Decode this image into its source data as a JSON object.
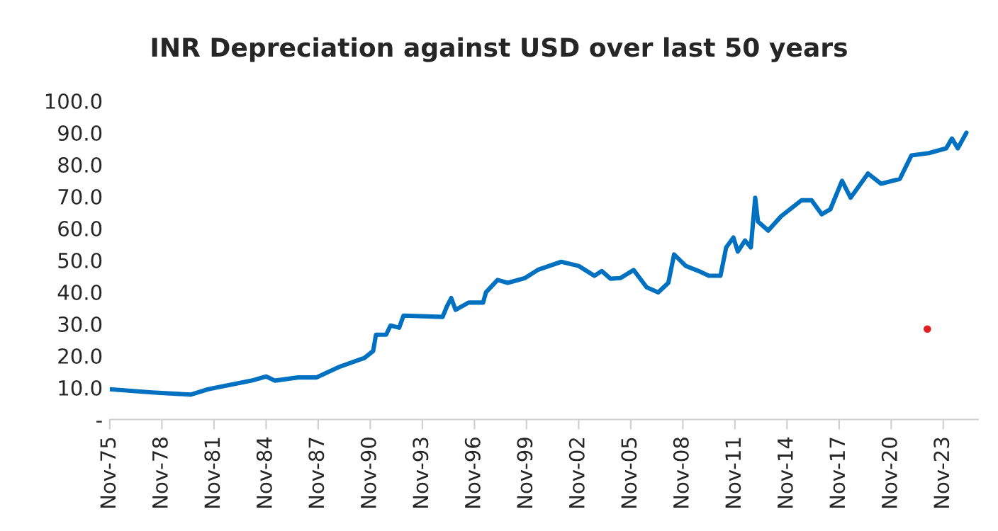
{
  "chart_data": {
    "type": "line",
    "title": "INR Depreciation against USD over last 50 years",
    "x": [
      "1975-11",
      "1978-04",
      "1980-07",
      "1981-07",
      "1984-01",
      "1984-11",
      "1985-05",
      "1986-09",
      "1987-10",
      "1989-02",
      "1990-07",
      "1991-01",
      "1991-03",
      "1991-10",
      "1992-01",
      "1992-07",
      "1992-10",
      "1995-01",
      "1995-04",
      "1995-07",
      "1995-10",
      "1996-07",
      "1997-05",
      "1997-07",
      "1998-03",
      "1998-10",
      "1999-10",
      "2000-07",
      "2001-11",
      "2002-11",
      "2003-10",
      "2004-03",
      "2004-09",
      "2005-04",
      "2006-01",
      "2006-10",
      "2007-06",
      "2008-01",
      "2008-05",
      "2009-01",
      "2009-10",
      "2010-05",
      "2011-01",
      "2011-05",
      "2011-10",
      "2012-01",
      "2012-06",
      "2012-10",
      "2013-01",
      "2013-03",
      "2013-10",
      "2014-07",
      "2015-09",
      "2016-04",
      "2016-11",
      "2017-05",
      "2018-01",
      "2018-07",
      "2019-07",
      "2020-04",
      "2021-05",
      "2022-01",
      "2023-01",
      "2024-01",
      "2024-05",
      "2024-09",
      "2025-03"
    ],
    "series": [
      {
        "color": "#0070c0",
        "values": [
          9.5,
          8.5,
          7.8,
          9.5,
          12.2,
          13.5,
          12.2,
          13.2,
          13.2,
          16.6,
          19.3,
          21.5,
          26.6,
          26.6,
          29.5,
          28.8,
          32.6,
          32.2,
          35.5,
          38.1,
          34.4,
          36.7,
          36.7,
          39.9,
          43.8,
          42.9,
          44.4,
          47.0,
          49.5,
          48.2,
          45.1,
          46.6,
          44.2,
          44.4,
          46.9,
          41.5,
          39.9,
          42.9,
          51.8,
          48.2,
          46.6,
          45.1,
          45.1,
          54.0,
          57.1,
          52.7,
          56.2,
          54.0,
          69.6,
          62.1,
          59.3,
          63.8,
          68.8,
          68.8,
          64.4,
          66.0,
          74.9,
          69.6,
          77.2,
          74.0,
          75.5,
          82.9,
          83.6,
          85.1,
          88.2,
          85.1,
          90.0
        ]
      },
      {
        "type": "scatter",
        "color": "#e02020",
        "x": [
          "2022-12"
        ],
        "values": [
          28.4
        ]
      }
    ],
    "xlim": [
      "1975-11",
      "2025-11"
    ],
    "xticks": [
      {
        "value": "1975-11",
        "label": "Nov-75"
      },
      {
        "value": "1978-11",
        "label": "Nov-78"
      },
      {
        "value": "1981-11",
        "label": "Nov-81"
      },
      {
        "value": "1984-11",
        "label": "Nov-84"
      },
      {
        "value": "1987-11",
        "label": "Nov-87"
      },
      {
        "value": "1990-11",
        "label": "Nov-90"
      },
      {
        "value": "1993-11",
        "label": "Nov-93"
      },
      {
        "value": "1996-11",
        "label": "Nov-96"
      },
      {
        "value": "1999-11",
        "label": "Nov-99"
      },
      {
        "value": "2002-11",
        "label": "Nov-02"
      },
      {
        "value": "2005-11",
        "label": "Nov-05"
      },
      {
        "value": "2008-11",
        "label": "Nov-08"
      },
      {
        "value": "2011-11",
        "label": "Nov-11"
      },
      {
        "value": "2014-11",
        "label": "Nov-14"
      },
      {
        "value": "2017-11",
        "label": "Nov-17"
      },
      {
        "value": "2020-11",
        "label": "Nov-20"
      },
      {
        "value": "2023-11",
        "label": "Nov-23"
      }
    ],
    "ylim": [
      0,
      100
    ],
    "yticks": [
      {
        "value": 0,
        "label": "-"
      },
      {
        "value": 10,
        "label": "10.0"
      },
      {
        "value": 20,
        "label": "20.0"
      },
      {
        "value": 30,
        "label": "30.0"
      },
      {
        "value": 40,
        "label": "40.0"
      },
      {
        "value": 50,
        "label": "50.0"
      },
      {
        "value": 60,
        "label": "60.0"
      },
      {
        "value": 70,
        "label": "70.0"
      },
      {
        "value": 80,
        "label": "80.0"
      },
      {
        "value": 90,
        "label": "90.0"
      },
      {
        "value": 100,
        "label": "100.0"
      }
    ],
    "grid": false
  }
}
